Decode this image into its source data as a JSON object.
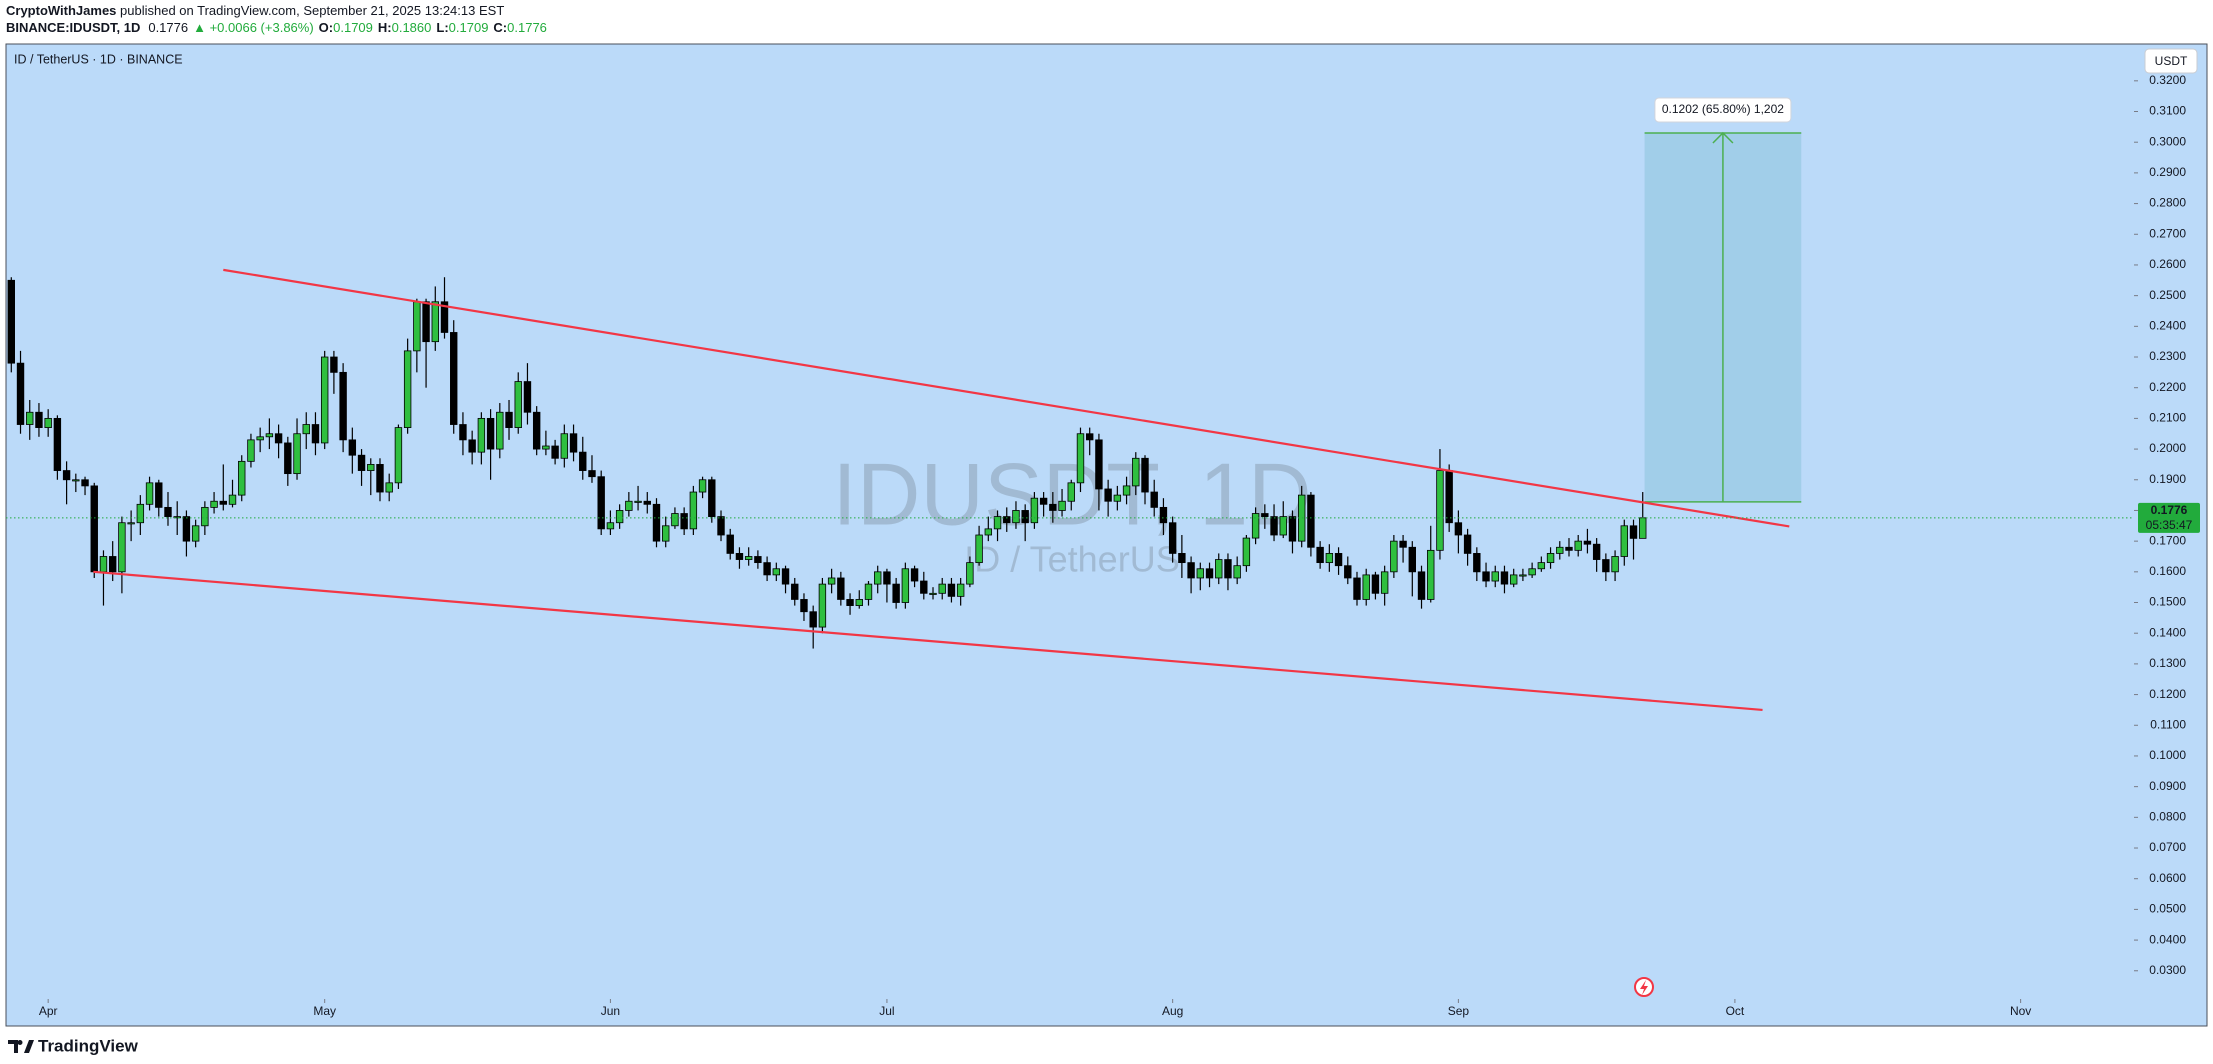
{
  "header": {
    "author": "CryptoWithJames",
    "published": " published on TradingView.com, September 21, 2025 13:24:13 EST",
    "symbol": "BINANCE:IDUSDT, 1D",
    "last": "0.1776",
    "change": "▲ +0.0066 (+3.86%)",
    "ohlc": [
      {
        "k": "O:",
        "v": "0.1709"
      },
      {
        "k": "H:",
        "v": "0.1860"
      },
      {
        "k": "L:",
        "v": "0.1709"
      },
      {
        "k": "C:",
        "v": "0.1776"
      }
    ]
  },
  "chart_data": {
    "type": "candlestick",
    "title": "ID / TetherUS · 1D · BINANCE",
    "watermark": "IDUSDT, 1D",
    "watermark_sub": "ID / TetherUS",
    "currency": "USDT",
    "background": "#bbdaf9",
    "up_color": "#2fbf3f",
    "down_color": "#000000",
    "xlim": [
      -0.575,
      230.3
    ],
    "ylim": [
      0.0208,
      0.332
    ],
    "xticks": [
      {
        "value": 4,
        "label": "Apr"
      },
      {
        "value": 34,
        "label": "May"
      },
      {
        "value": 65,
        "label": "Jun"
      },
      {
        "value": 95,
        "label": "Jul"
      },
      {
        "value": 126,
        "label": "Aug"
      },
      {
        "value": 157,
        "label": "Sep"
      },
      {
        "value": 187,
        "label": "Oct"
      },
      {
        "value": 218,
        "label": "Nov"
      }
    ],
    "yticks": [
      {
        "value": 0.03,
        "label": "0.0300"
      },
      {
        "value": 0.04,
        "label": "0.0400"
      },
      {
        "value": 0.05,
        "label": "0.0500"
      },
      {
        "value": 0.06,
        "label": "0.0600"
      },
      {
        "value": 0.07,
        "label": "0.0700"
      },
      {
        "value": 0.08,
        "label": "0.0800"
      },
      {
        "value": 0.09,
        "label": "0.0900"
      },
      {
        "value": 0.1,
        "label": "0.1000"
      },
      {
        "value": 0.11,
        "label": "0.1100"
      },
      {
        "value": 0.12,
        "label": "0.1200"
      },
      {
        "value": 0.13,
        "label": "0.1300"
      },
      {
        "value": 0.14,
        "label": "0.1400"
      },
      {
        "value": 0.15,
        "label": "0.1500"
      },
      {
        "value": 0.16,
        "label": "0.1600"
      },
      {
        "value": 0.17,
        "label": "0.1700"
      },
      {
        "value": 0.18,
        "label": "0.1800"
      },
      {
        "value": 0.19,
        "label": "0.1900"
      },
      {
        "value": 0.2,
        "label": "0.2000"
      },
      {
        "value": 0.21,
        "label": "0.2100"
      },
      {
        "value": 0.22,
        "label": "0.2200"
      },
      {
        "value": 0.23,
        "label": "0.2300"
      },
      {
        "value": 0.24,
        "label": "0.2400"
      },
      {
        "value": 0.25,
        "label": "0.2500"
      },
      {
        "value": 0.26,
        "label": "0.2600"
      },
      {
        "value": 0.27,
        "label": "0.2700"
      },
      {
        "value": 0.28,
        "label": "0.2800"
      },
      {
        "value": 0.29,
        "label": "0.2900"
      },
      {
        "value": 0.3,
        "label": "0.3000"
      },
      {
        "value": 0.31,
        "label": "0.3100"
      },
      {
        "value": 0.32,
        "label": "0.3200"
      }
    ],
    "grid": false,
    "open": [
      0.255,
      0.228,
      0.208,
      0.212,
      0.207,
      0.21,
      0.193,
      0.19,
      0.19,
      0.188,
      0.16,
      0.165,
      0.16,
      0.176,
      0.176,
      0.182,
      0.189,
      0.181,
      0.178,
      0.178,
      0.17,
      0.175,
      0.181,
      0.183,
      0.182,
      0.185,
      0.196,
      0.203,
      0.204,
      0.205,
      0.202,
      0.192,
      0.205,
      0.208,
      0.202,
      0.23,
      0.225,
      0.203,
      0.198,
      0.193,
      0.195,
      0.186,
      0.189,
      0.207,
      0.232,
      0.248,
      0.235,
      0.248,
      0.238,
      0.208,
      0.203,
      0.199,
      0.21,
      0.2,
      0.212,
      0.207,
      0.222,
      0.212,
      0.2,
      0.201,
      0.197,
      0.205,
      0.199,
      0.193,
      0.191,
      0.174,
      0.176,
      0.18,
      0.183,
      0.183,
      0.182,
      0.17,
      0.175,
      0.179,
      0.174,
      0.186,
      0.19,
      0.178,
      0.172,
      0.166,
      0.164,
      0.165,
      0.163,
      0.159,
      0.161,
      0.156,
      0.151,
      0.147,
      0.142,
      0.156,
      0.158,
      0.151,
      0.149,
      0.151,
      0.156,
      0.16,
      0.156,
      0.15,
      0.161,
      0.157,
      0.153,
      0.153,
      0.156,
      0.152,
      0.156,
      0.163,
      0.172,
      0.174,
      0.178,
      0.176,
      0.18,
      0.176,
      0.184,
      0.182,
      0.18,
      0.183,
      0.189,
      0.205,
      0.203,
      0.187,
      0.183,
      0.185,
      0.188,
      0.197,
      0.186,
      0.181,
      0.176,
      0.166,
      0.163,
      0.158,
      0.161,
      0.158,
      0.164,
      0.158,
      0.162,
      0.171,
      0.179,
      0.178,
      0.172,
      0.178,
      0.17,
      0.185,
      0.168,
      0.163,
      0.166,
      0.162,
      0.158,
      0.151,
      0.159,
      0.153,
      0.16,
      0.17,
      0.168,
      0.16,
      0.151,
      0.167,
      0.193,
      0.176,
      0.172,
      0.166,
      0.16,
      0.157,
      0.16,
      0.156,
      0.159,
      0.159,
      0.161,
      0.163,
      0.166,
      0.168,
      0.167,
      0.17,
      0.169,
      0.164,
      0.16,
      0.165,
      0.175,
      0.1709
    ],
    "high": [
      0.256,
      0.232,
      0.216,
      0.215,
      0.213,
      0.211,
      0.196,
      0.192,
      0.191,
      0.189,
      0.167,
      0.17,
      0.178,
      0.18,
      0.185,
      0.191,
      0.19,
      0.186,
      0.183,
      0.18,
      0.177,
      0.183,
      0.186,
      0.195,
      0.19,
      0.198,
      0.205,
      0.207,
      0.21,
      0.208,
      0.204,
      0.21,
      0.212,
      0.212,
      0.232,
      0.232,
      0.228,
      0.207,
      0.2,
      0.197,
      0.197,
      0.192,
      0.208,
      0.236,
      0.249,
      0.249,
      0.253,
      0.256,
      0.242,
      0.212,
      0.206,
      0.212,
      0.213,
      0.215,
      0.216,
      0.225,
      0.228,
      0.214,
      0.206,
      0.203,
      0.208,
      0.208,
      0.204,
      0.198,
      0.193,
      0.18,
      0.182,
      0.186,
      0.188,
      0.186,
      0.184,
      0.178,
      0.181,
      0.181,
      0.188,
      0.191,
      0.191,
      0.18,
      0.174,
      0.168,
      0.168,
      0.167,
      0.165,
      0.163,
      0.162,
      0.158,
      0.153,
      0.149,
      0.158,
      0.161,
      0.16,
      0.153,
      0.154,
      0.157,
      0.162,
      0.161,
      0.158,
      0.163,
      0.162,
      0.16,
      0.155,
      0.158,
      0.158,
      0.158,
      0.165,
      0.175,
      0.178,
      0.18,
      0.181,
      0.183,
      0.182,
      0.186,
      0.186,
      0.186,
      0.187,
      0.19,
      0.207,
      0.207,
      0.205,
      0.19,
      0.188,
      0.191,
      0.199,
      0.198,
      0.19,
      0.184,
      0.178,
      0.172,
      0.165,
      0.163,
      0.163,
      0.166,
      0.166,
      0.165,
      0.172,
      0.181,
      0.182,
      0.182,
      0.183,
      0.18,
      0.188,
      0.186,
      0.17,
      0.169,
      0.168,
      0.165,
      0.16,
      0.161,
      0.16,
      0.162,
      0.172,
      0.172,
      0.17,
      0.162,
      0.175,
      0.2,
      0.195,
      0.18,
      0.174,
      0.168,
      0.163,
      0.162,
      0.162,
      0.161,
      0.161,
      0.163,
      0.165,
      0.168,
      0.17,
      0.171,
      0.172,
      0.174,
      0.171,
      0.166,
      0.167,
      0.177,
      0.177,
      0.186
    ],
    "low": [
      0.225,
      0.205,
      0.203,
      0.204,
      0.204,
      0.19,
      0.182,
      0.186,
      0.185,
      0.158,
      0.149,
      0.157,
      0.153,
      0.17,
      0.172,
      0.18,
      0.178,
      0.175,
      0.172,
      0.165,
      0.168,
      0.172,
      0.179,
      0.18,
      0.181,
      0.183,
      0.194,
      0.199,
      0.2,
      0.197,
      0.188,
      0.19,
      0.2,
      0.198,
      0.2,
      0.218,
      0.199,
      0.192,
      0.188,
      0.185,
      0.183,
      0.183,
      0.187,
      0.205,
      0.225,
      0.22,
      0.232,
      0.236,
      0.205,
      0.198,
      0.195,
      0.195,
      0.19,
      0.197,
      0.203,
      0.205,
      0.208,
      0.198,
      0.198,
      0.195,
      0.194,
      0.196,
      0.19,
      0.189,
      0.172,
      0.172,
      0.174,
      0.178,
      0.18,
      0.179,
      0.168,
      0.168,
      0.174,
      0.172,
      0.172,
      0.184,
      0.176,
      0.17,
      0.164,
      0.161,
      0.162,
      0.161,
      0.157,
      0.157,
      0.153,
      0.149,
      0.144,
      0.135,
      0.14,
      0.153,
      0.149,
      0.146,
      0.148,
      0.149,
      0.153,
      0.15,
      0.148,
      0.148,
      0.155,
      0.151,
      0.151,
      0.151,
      0.15,
      0.149,
      0.155,
      0.162,
      0.17,
      0.17,
      0.173,
      0.174,
      0.17,
      0.174,
      0.178,
      0.176,
      0.178,
      0.18,
      0.186,
      0.198,
      0.18,
      0.178,
      0.18,
      0.182,
      0.185,
      0.182,
      0.178,
      0.172,
      0.163,
      0.158,
      0.153,
      0.154,
      0.155,
      0.156,
      0.154,
      0.156,
      0.16,
      0.169,
      0.174,
      0.17,
      0.171,
      0.166,
      0.168,
      0.165,
      0.161,
      0.16,
      0.159,
      0.156,
      0.149,
      0.149,
      0.151,
      0.149,
      0.158,
      0.163,
      0.152,
      0.148,
      0.15,
      0.164,
      0.173,
      0.166,
      0.162,
      0.157,
      0.155,
      0.155,
      0.153,
      0.155,
      0.157,
      0.158,
      0.16,
      0.161,
      0.164,
      0.165,
      0.165,
      0.166,
      0.16,
      0.157,
      0.157,
      0.162,
      0.164,
      0.1709
    ],
    "close": [
      0.228,
      0.208,
      0.212,
      0.207,
      0.21,
      0.193,
      0.19,
      0.19,
      0.188,
      0.16,
      0.165,
      0.16,
      0.176,
      0.176,
      0.182,
      0.189,
      0.181,
      0.178,
      0.178,
      0.17,
      0.175,
      0.181,
      0.183,
      0.182,
      0.185,
      0.196,
      0.203,
      0.204,
      0.205,
      0.202,
      0.192,
      0.205,
      0.208,
      0.202,
      0.23,
      0.225,
      0.203,
      0.198,
      0.193,
      0.195,
      0.186,
      0.189,
      0.207,
      0.232,
      0.248,
      0.235,
      0.248,
      0.238,
      0.208,
      0.203,
      0.199,
      0.21,
      0.2,
      0.212,
      0.207,
      0.222,
      0.212,
      0.2,
      0.201,
      0.197,
      0.205,
      0.199,
      0.193,
      0.191,
      0.174,
      0.176,
      0.18,
      0.183,
      0.183,
      0.182,
      0.17,
      0.175,
      0.179,
      0.174,
      0.186,
      0.19,
      0.178,
      0.172,
      0.166,
      0.164,
      0.165,
      0.163,
      0.159,
      0.161,
      0.156,
      0.151,
      0.147,
      0.142,
      0.156,
      0.158,
      0.151,
      0.149,
      0.151,
      0.156,
      0.16,
      0.156,
      0.15,
      0.161,
      0.157,
      0.153,
      0.153,
      0.156,
      0.152,
      0.156,
      0.163,
      0.172,
      0.174,
      0.178,
      0.176,
      0.18,
      0.176,
      0.184,
      0.182,
      0.18,
      0.183,
      0.189,
      0.205,
      0.203,
      0.187,
      0.183,
      0.185,
      0.188,
      0.197,
      0.186,
      0.181,
      0.176,
      0.166,
      0.163,
      0.158,
      0.161,
      0.158,
      0.164,
      0.158,
      0.162,
      0.171,
      0.179,
      0.178,
      0.172,
      0.178,
      0.17,
      0.185,
      0.168,
      0.163,
      0.166,
      0.162,
      0.158,
      0.151,
      0.159,
      0.153,
      0.16,
      0.17,
      0.168,
      0.16,
      0.151,
      0.167,
      0.193,
      0.176,
      0.172,
      0.166,
      0.16,
      0.157,
      0.16,
      0.156,
      0.159,
      0.159,
      0.161,
      0.163,
      0.166,
      0.168,
      0.167,
      0.17,
      0.169,
      0.164,
      0.16,
      0.165,
      0.175,
      0.1709,
      0.1776
    ],
    "trendlines": [
      {
        "x": [
          23,
          192.9
        ],
        "y": [
          0.2584,
          0.1748
        ],
        "color": "#f23645"
      },
      {
        "x": [
          8.9,
          190
        ],
        "y": [
          0.16,
          0.115
        ],
        "color": "#f23645"
      }
    ],
    "measure": {
      "label": "0.1202 (65.80%) 1,202",
      "x": [
        177.2,
        194.2
      ],
      "y": [
        0.1828,
        0.303
      ],
      "color": "#4caf50",
      "fill": "#9ccbe6"
    },
    "last_price": {
      "value": 0.1776,
      "label": "0.1776"
    },
    "countdown": "05:35:47",
    "last_color": "#22ab3c"
  },
  "footer": {
    "logo": "TradingView"
  }
}
